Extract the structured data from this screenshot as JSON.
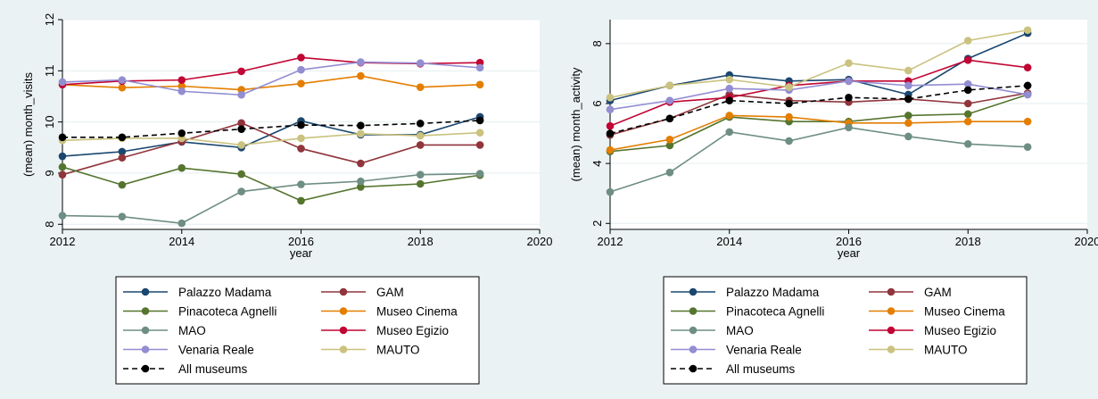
{
  "colors": {
    "outer_bg": "#eaf2f3",
    "plot_bg": "#ffffff",
    "grid": "#e6eef0",
    "axis": "#000000"
  },
  "chart_data": [
    {
      "type": "line",
      "xlabel": "year",
      "ylabel": "(mean) month_visits",
      "xlim": [
        2012,
        2020
      ],
      "ylim": [
        7.9,
        12
      ],
      "xticks": [
        "2012",
        "2014",
        "2016",
        "2018",
        "2020"
      ],
      "yticks": [
        "8",
        "9",
        "10",
        "11",
        "12"
      ],
      "grid": true,
      "legend_position": "bottom",
      "x": [
        2012,
        2013,
        2014,
        2015,
        2016,
        2017,
        2018,
        2019
      ],
      "series": [
        {
          "name": "Palazzo Madama",
          "color": "#1a476f",
          "dashed": false,
          "values": [
            9.33,
            9.42,
            9.61,
            9.5,
            10.02,
            9.75,
            9.75,
            10.1
          ]
        },
        {
          "name": "GAM",
          "color": "#90353b",
          "dashed": false,
          "values": [
            8.97,
            9.3,
            9.62,
            9.98,
            9.48,
            9.19,
            9.55,
            9.55
          ]
        },
        {
          "name": "Pinacoteca Agnelli",
          "color": "#55752f",
          "dashed": false,
          "values": [
            9.12,
            8.77,
            9.1,
            8.98,
            8.46,
            8.73,
            8.79,
            8.96
          ]
        },
        {
          "name": "Museo Cinema",
          "color": "#e37e00",
          "dashed": false,
          "values": [
            10.73,
            10.67,
            10.7,
            10.63,
            10.75,
            10.9,
            10.68,
            10.73
          ]
        },
        {
          "name": "MAO",
          "color": "#6e8e84",
          "dashed": false,
          "values": [
            8.17,
            8.15,
            8.02,
            8.64,
            8.78,
            8.84,
            8.97,
            8.99
          ]
        },
        {
          "name": "Museo Egizio",
          "color": "#c10534",
          "dashed": false,
          "values": [
            10.73,
            10.8,
            10.82,
            10.99,
            11.26,
            11.16,
            11.14,
            11.16
          ]
        },
        {
          "name": "Venaria Reale",
          "color": "#938dd2",
          "dashed": false,
          "values": [
            10.78,
            10.82,
            10.6,
            10.53,
            11.02,
            11.17,
            11.15,
            11.06
          ]
        },
        {
          "name": "MAUTO",
          "color": "#cac27e",
          "dashed": false,
          "values": [
            9.64,
            9.68,
            9.68,
            9.55,
            9.68,
            9.77,
            9.73,
            9.79
          ]
        },
        {
          "name": "All museums",
          "color": "#000000",
          "dashed": true,
          "values": [
            9.7,
            9.7,
            9.78,
            9.86,
            9.94,
            9.93,
            9.97,
            10.03
          ]
        }
      ]
    },
    {
      "type": "line",
      "xlabel": "year",
      "ylabel": "(mean) month_activity",
      "xlim": [
        2012,
        2020
      ],
      "ylim": [
        1.8,
        8.8
      ],
      "xticks": [
        "2012",
        "2014",
        "2016",
        "2018",
        "2020"
      ],
      "yticks": [
        "2",
        "4",
        "6",
        "8"
      ],
      "grid": true,
      "legend_position": "bottom",
      "x": [
        2012,
        2013,
        2014,
        2015,
        2016,
        2017,
        2018,
        2019
      ],
      "series": [
        {
          "name": "Palazzo Madama",
          "color": "#1a476f",
          "dashed": false,
          "values": [
            6.1,
            6.6,
            6.95,
            6.75,
            6.8,
            6.3,
            7.5,
            8.35
          ]
        },
        {
          "name": "GAM",
          "color": "#90353b",
          "dashed": false,
          "values": [
            4.95,
            5.5,
            6.3,
            6.1,
            6.05,
            6.15,
            6.0,
            6.35
          ]
        },
        {
          "name": "Pinacoteca Agnelli",
          "color": "#55752f",
          "dashed": false,
          "values": [
            4.4,
            4.6,
            5.55,
            5.4,
            5.4,
            5.6,
            5.65,
            6.3
          ]
        },
        {
          "name": "Museo Cinema",
          "color": "#e37e00",
          "dashed": false,
          "values": [
            4.45,
            4.8,
            5.6,
            5.55,
            5.35,
            5.35,
            5.4,
            5.4
          ]
        },
        {
          "name": "MAO",
          "color": "#6e8e84",
          "dashed": false,
          "values": [
            3.05,
            3.7,
            5.05,
            4.75,
            5.2,
            4.9,
            4.65,
            4.55
          ]
        },
        {
          "name": "Museo Egizio",
          "color": "#c10534",
          "dashed": false,
          "values": [
            5.25,
            6.05,
            6.2,
            6.6,
            6.75,
            6.75,
            7.45,
            7.2
          ]
        },
        {
          "name": "Venaria Reale",
          "color": "#938dd2",
          "dashed": false,
          "values": [
            5.8,
            6.1,
            6.5,
            6.45,
            6.75,
            6.6,
            6.65,
            6.3
          ]
        },
        {
          "name": "MAUTO",
          "color": "#cac27e",
          "dashed": false,
          "values": [
            6.2,
            6.6,
            6.8,
            6.55,
            7.35,
            7.1,
            8.1,
            8.45
          ]
        },
        {
          "name": "All museums",
          "color": "#000000",
          "dashed": true,
          "values": [
            5.0,
            5.5,
            6.1,
            6.0,
            6.2,
            6.15,
            6.45,
            6.6
          ]
        }
      ]
    }
  ]
}
